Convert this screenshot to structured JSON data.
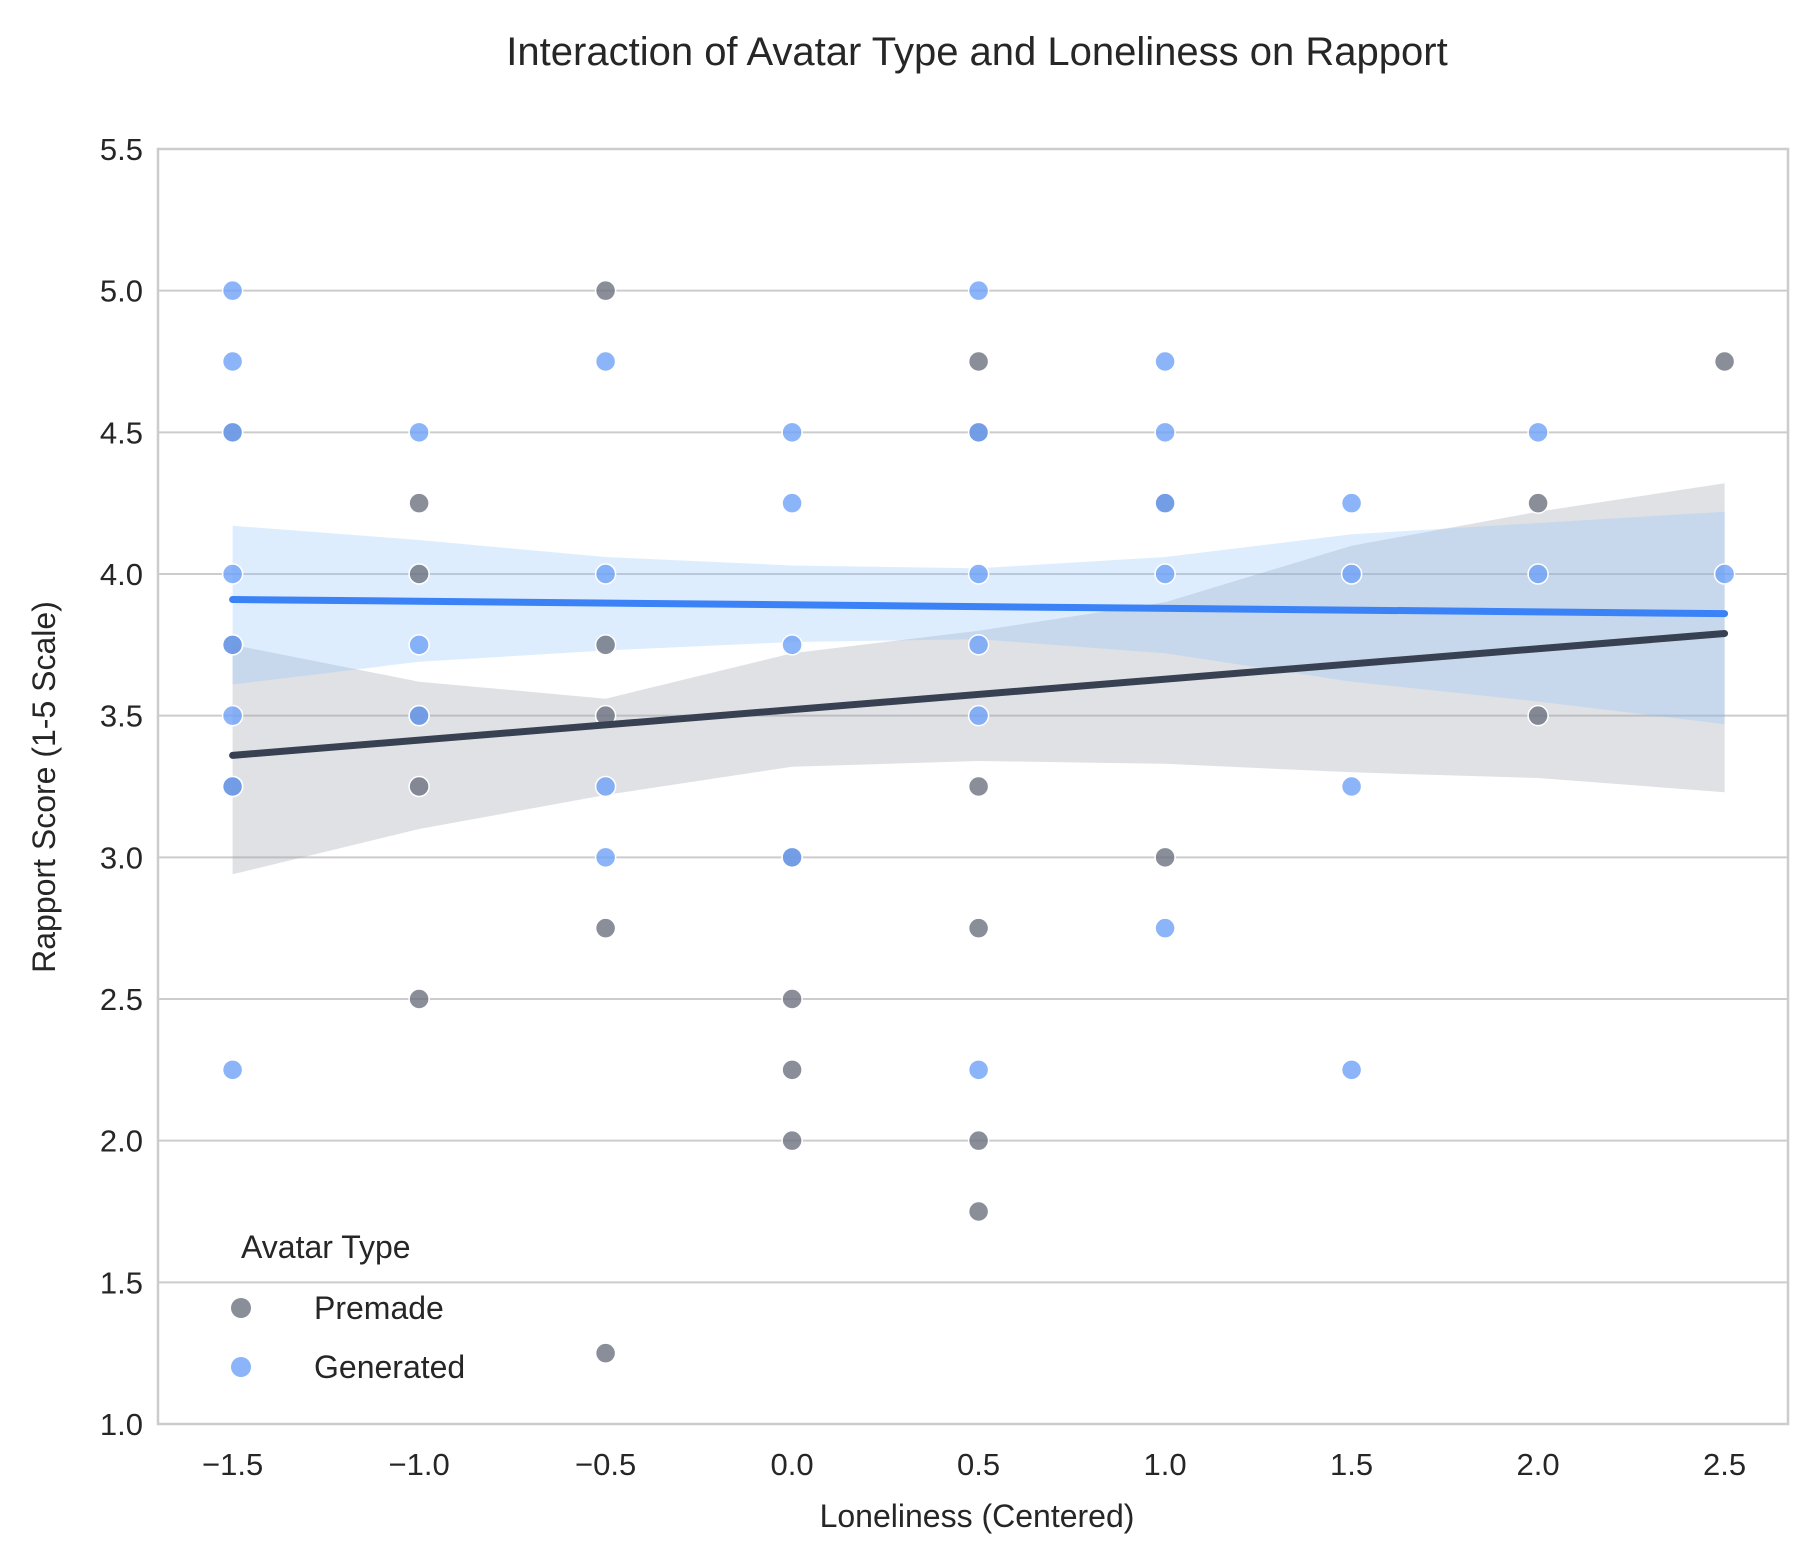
{
  "chart_data": {
    "type": "scatter",
    "title": "Interaction of Avatar Type and Loneliness on Rapport",
    "xlabel": "Loneliness (Centered)",
    "ylabel": "Rapport Score (1-5 Scale)",
    "xlim": [
      -1.7,
      2.67
    ],
    "ylim": [
      1.0,
      5.5
    ],
    "x_ticks": [
      "−1.5",
      "−1.0",
      "−0.5",
      "0.0",
      "0.5",
      "1.0",
      "1.5",
      "2.0",
      "2.5"
    ],
    "x_tick_values": [
      -1.5,
      -1.0,
      -0.5,
      0.0,
      0.5,
      1.0,
      1.5,
      2.0,
      2.5
    ],
    "y_ticks": [
      "1.0",
      "1.5",
      "2.0",
      "2.5",
      "3.0",
      "3.5",
      "4.0",
      "4.5",
      "5.0",
      "5.5"
    ],
    "y_tick_values": [
      1.0,
      1.5,
      2.0,
      2.5,
      3.0,
      3.5,
      4.0,
      4.5,
      5.0,
      5.5
    ],
    "grid": "horizontal",
    "legend": {
      "title": "Avatar Type",
      "placement": "lower-left",
      "entries": [
        "Premade",
        "Generated"
      ]
    },
    "series": [
      {
        "name": "Premade",
        "color": "#374151",
        "point_color": "#6b7280",
        "points": [
          [
            -1.5,
            3.75
          ],
          [
            -1.5,
            3.25
          ],
          [
            -1.5,
            4.5
          ],
          [
            -1.0,
            4.25
          ],
          [
            -1.0,
            4.0
          ],
          [
            -1.0,
            3.5
          ],
          [
            -1.0,
            3.25
          ],
          [
            -1.0,
            2.5
          ],
          [
            -0.5,
            5.0
          ],
          [
            -0.5,
            3.75
          ],
          [
            -0.5,
            3.5
          ],
          [
            -0.5,
            2.75
          ],
          [
            -0.5,
            1.25
          ],
          [
            0.0,
            2.5
          ],
          [
            0.0,
            2.25
          ],
          [
            0.0,
            2.0
          ],
          [
            0.0,
            3.0
          ],
          [
            0.5,
            4.75
          ],
          [
            0.5,
            4.5
          ],
          [
            0.5,
            3.25
          ],
          [
            0.5,
            2.75
          ],
          [
            0.5,
            2.0
          ],
          [
            0.5,
            1.75
          ],
          [
            1.0,
            4.25
          ],
          [
            1.0,
            3.0
          ],
          [
            2.0,
            4.25
          ],
          [
            2.0,
            3.5
          ],
          [
            2.5,
            4.75
          ]
        ],
        "fit": {
          "x": [
            -1.5,
            2.5
          ],
          "y": [
            3.36,
            3.79
          ]
        },
        "ci_upper": [
          [
            -1.5,
            3.75
          ],
          [
            -1.0,
            3.62
          ],
          [
            -0.5,
            3.56
          ],
          [
            0.0,
            3.72
          ],
          [
            0.5,
            3.8
          ],
          [
            1.0,
            3.9
          ],
          [
            1.5,
            4.1
          ],
          [
            2.0,
            4.22
          ],
          [
            2.5,
            4.32
          ]
        ],
        "ci_lower": [
          [
            -1.5,
            2.94
          ],
          [
            -1.0,
            3.1
          ],
          [
            -0.5,
            3.22
          ],
          [
            0.0,
            3.32
          ],
          [
            0.5,
            3.34
          ],
          [
            1.0,
            3.33
          ],
          [
            1.5,
            3.3
          ],
          [
            2.0,
            3.28
          ],
          [
            2.5,
            3.23
          ]
        ]
      },
      {
        "name": "Generated",
        "color": "#3b82f6",
        "point_color": "#6ea1f8",
        "points": [
          [
            -1.5,
            5.0
          ],
          [
            -1.5,
            4.75
          ],
          [
            -1.5,
            4.5
          ],
          [
            -1.5,
            4.0
          ],
          [
            -1.5,
            3.75
          ],
          [
            -1.5,
            3.5
          ],
          [
            -1.5,
            3.25
          ],
          [
            -1.5,
            2.25
          ],
          [
            -1.0,
            4.5
          ],
          [
            -1.0,
            3.75
          ],
          [
            -1.0,
            3.5
          ],
          [
            -0.5,
            4.75
          ],
          [
            -0.5,
            4.0
          ],
          [
            -0.5,
            3.25
          ],
          [
            -0.5,
            3.0
          ],
          [
            0.0,
            4.5
          ],
          [
            0.0,
            4.25
          ],
          [
            0.0,
            3.75
          ],
          [
            0.0,
            3.0
          ],
          [
            0.5,
            5.0
          ],
          [
            0.5,
            4.5
          ],
          [
            0.5,
            4.0
          ],
          [
            0.5,
            3.75
          ],
          [
            0.5,
            3.5
          ],
          [
            0.5,
            2.25
          ],
          [
            1.0,
            4.75
          ],
          [
            1.0,
            4.5
          ],
          [
            1.0,
            4.25
          ],
          [
            1.0,
            4.0
          ],
          [
            1.0,
            2.75
          ],
          [
            1.5,
            4.25
          ],
          [
            1.5,
            4.0
          ],
          [
            1.5,
            3.25
          ],
          [
            1.5,
            2.25
          ],
          [
            2.0,
            4.5
          ],
          [
            2.0,
            4.0
          ],
          [
            2.5,
            4.0
          ]
        ],
        "fit": {
          "x": [
            -1.5,
            2.5
          ],
          "y": [
            3.91,
            3.86
          ]
        },
        "ci_upper": [
          [
            -1.5,
            4.17
          ],
          [
            -1.0,
            4.12
          ],
          [
            -0.5,
            4.06
          ],
          [
            0.0,
            4.03
          ],
          [
            0.5,
            4.02
          ],
          [
            1.0,
            4.06
          ],
          [
            1.5,
            4.14
          ],
          [
            2.0,
            4.18
          ],
          [
            2.5,
            4.22
          ]
        ],
        "ci_lower": [
          [
            -1.5,
            3.61
          ],
          [
            -1.0,
            3.69
          ],
          [
            -0.5,
            3.73
          ],
          [
            0.0,
            3.76
          ],
          [
            0.5,
            3.77
          ],
          [
            1.0,
            3.72
          ],
          [
            1.5,
            3.62
          ],
          [
            2.0,
            3.55
          ],
          [
            2.5,
            3.47
          ]
        ]
      }
    ]
  }
}
